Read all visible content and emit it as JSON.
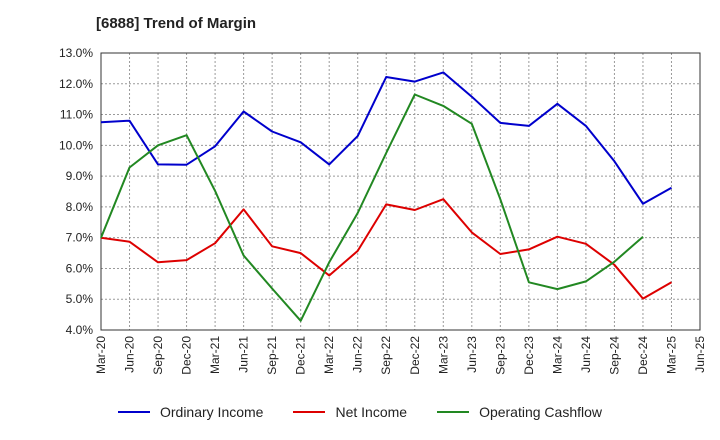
{
  "chart_data": {
    "type": "line",
    "title": "[6888]  Trend of Margin",
    "xlabel": "",
    "ylabel": "",
    "categories": [
      "Mar-20",
      "Jun-20",
      "Sep-20",
      "Dec-20",
      "Mar-21",
      "Jun-21",
      "Sep-21",
      "Dec-21",
      "Mar-22",
      "Jun-22",
      "Sep-22",
      "Dec-22",
      "Mar-23",
      "Jun-23",
      "Sep-23",
      "Dec-23",
      "Mar-24",
      "Jun-24",
      "Sep-24",
      "Dec-24",
      "Mar-25",
      "Jun-25"
    ],
    "ylim": [
      4.0,
      13.0
    ],
    "yticks": [
      "4.0%",
      "5.0%",
      "6.0%",
      "7.0%",
      "8.0%",
      "9.0%",
      "10.0%",
      "11.0%",
      "12.0%",
      "13.0%"
    ],
    "grid": true,
    "legend_position": "bottom",
    "series": [
      {
        "name": "Ordinary Income",
        "color": "#0000cc",
        "values": [
          10.75,
          10.8,
          9.38,
          9.37,
          9.97,
          11.1,
          10.45,
          10.1,
          9.38,
          10.3,
          12.22,
          12.07,
          12.37,
          11.58,
          10.73,
          10.63,
          11.35,
          10.63,
          9.48,
          8.1,
          8.62,
          null
        ]
      },
      {
        "name": "Net Income",
        "color": "#dd0000",
        "values": [
          7.0,
          6.87,
          6.2,
          6.27,
          6.82,
          7.92,
          6.72,
          6.5,
          5.77,
          6.57,
          8.08,
          7.9,
          8.25,
          7.17,
          6.47,
          6.62,
          7.03,
          6.8,
          6.12,
          5.02,
          5.55,
          null
        ]
      },
      {
        "name": "Operating Cashflow",
        "color": "#228822",
        "values": [
          7.0,
          9.28,
          10.0,
          10.33,
          8.52,
          6.42,
          5.35,
          4.3,
          6.2,
          7.8,
          9.75,
          11.65,
          11.28,
          10.7,
          8.25,
          5.55,
          5.33,
          5.58,
          6.22,
          7.03,
          null,
          null
        ]
      }
    ]
  }
}
